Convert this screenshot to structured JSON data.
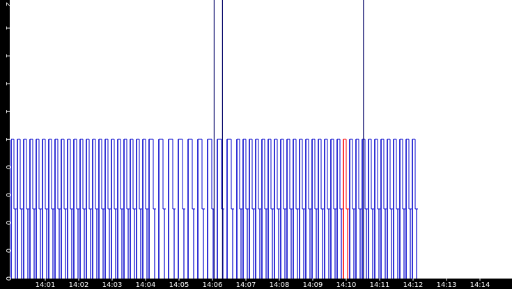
{
  "chart_data": {
    "type": "line",
    "title": "",
    "xlabel": "",
    "ylabel": "",
    "x_ticks": [
      "14:01",
      "14:02",
      "14:03",
      "14:04",
      "14:05",
      "14:06",
      "14:07",
      "14:08",
      "14:09",
      "14:10",
      "14:11",
      "14:12",
      "14:13",
      "14:14"
    ],
    "y_ticks": [
      "0",
      "0",
      "0",
      "0",
      "0",
      "1",
      "1",
      "1",
      "1",
      "1",
      "2"
    ],
    "grid": false,
    "colors": {
      "primary": "#0000cc",
      "highlight": "#ff0000",
      "spike": "#000066",
      "axis": "#000000"
    },
    "series": [
      {
        "name": "",
        "pulse_levels": [
          0,
          0.5,
          1
        ],
        "spike_level": 2,
        "spikes_at": [
          "14:06:03",
          "14:06:18",
          "14:10:31"
        ],
        "highlight_window": [
          "14:09:46",
          "14:10:02"
        ],
        "data_end": "14:12:05"
      }
    ]
  }
}
